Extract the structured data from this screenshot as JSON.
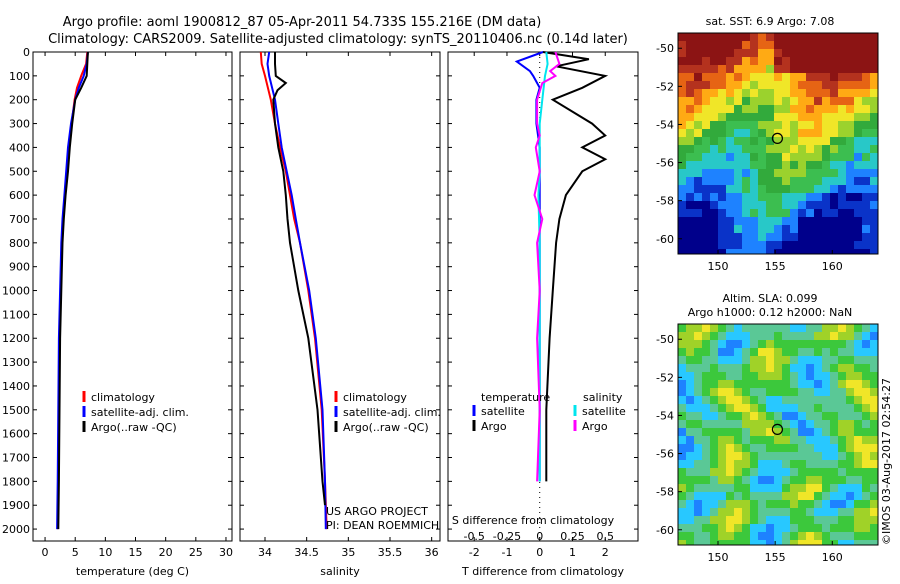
{
  "title_line1": "Argo profile: aoml 1900812_87 05-Apr-2011 54.733S 155.216E (DM data)",
  "title_line2": "Climatology: CARS2009. Satellite-adjusted climatology: synTS_20110406.nc (0.14d later)",
  "map_sst_title": "sat. SST: 6.9 Argo: 7.08",
  "map_sla_title1": "Altim. SLA: 0.099",
  "map_sla_title2": "Argo h1000: 0.12 h2000: NaN",
  "credit": "©IMOS 03-Aug-2017 02:54:27",
  "project_line1": "US ARGO PROJECT",
  "project_line2": "PI: DEAN ROEMMICH",
  "colors": {
    "climatology": "#ff0000",
    "satellite": "#0000ff",
    "argo": "#000000",
    "satellite_s": "#00e5ee",
    "argo_s": "#ff00ff"
  },
  "chart_data": [
    {
      "type": "line",
      "xlabel": "temperature (deg C)",
      "ylabel": "",
      "xlim": [
        -2,
        31
      ],
      "ylim": [
        2050,
        0
      ],
      "xticks": [
        "0",
        "5",
        "10",
        "15",
        "20",
        "25",
        "30"
      ],
      "yticks": [
        "0",
        "100",
        "200",
        "300",
        "400",
        "500",
        "600",
        "700",
        "800",
        "900",
        "1000",
        "1100",
        "1200",
        "1300",
        "1400",
        "1500",
        "1600",
        "1700",
        "1800",
        "1900",
        "2000"
      ],
      "legend": [
        "climatology",
        "satellite-adj. clim.",
        "Argo(..raw -QC)"
      ],
      "series": [
        {
          "name": "climatology",
          "depth": [
            0,
            50,
            100,
            150,
            200,
            300,
            400,
            500,
            600,
            700,
            800,
            1000,
            1200,
            1500,
            1800,
            2000
          ],
          "values": [
            7.0,
            6.8,
            6.0,
            5.3,
            4.9,
            4.4,
            4.0,
            3.6,
            3.3,
            3.0,
            2.8,
            2.6,
            2.4,
            2.3,
            2.2,
            2.1
          ]
        },
        {
          "name": "satellite-adj. clim.",
          "depth": [
            0,
            50,
            100,
            150,
            200,
            300,
            400,
            500,
            600,
            700,
            800,
            1000,
            1200,
            1500,
            1800,
            2000
          ],
          "values": [
            7.1,
            6.9,
            6.4,
            5.6,
            5.0,
            4.3,
            3.8,
            3.5,
            3.2,
            2.9,
            2.7,
            2.5,
            2.3,
            2.2,
            2.1,
            2.0
          ]
        },
        {
          "name": "Argo(..raw -QC)",
          "depth": [
            0,
            50,
            100,
            150,
            200,
            300,
            400,
            500,
            600,
            700,
            800,
            1000,
            1200,
            1500,
            1800,
            2000
          ],
          "values": [
            7.1,
            7.0,
            6.9,
            6.0,
            5.0,
            4.5,
            4.1,
            3.8,
            3.4,
            3.1,
            2.9,
            2.7,
            2.5,
            2.4,
            2.3,
            2.2
          ]
        }
      ]
    },
    {
      "type": "line",
      "xlabel": "salinity",
      "xlim": [
        33.7,
        36.1
      ],
      "ylim": [
        2050,
        0
      ],
      "xticks": [
        "34",
        "34.5",
        "35",
        "35.5",
        "36"
      ],
      "legend": [
        "climatology",
        "satellite-adj. clim.",
        "Argo(..raw -QC)"
      ],
      "series": [
        {
          "name": "climatology",
          "depth": [
            0,
            50,
            100,
            200,
            300,
            400,
            500,
            600,
            700,
            800,
            1000,
            1200,
            1500,
            1800,
            2000
          ],
          "values": [
            33.95,
            33.96,
            34.0,
            34.07,
            34.12,
            34.18,
            34.25,
            34.3,
            34.35,
            34.42,
            34.52,
            34.6,
            34.68,
            34.72,
            34.74
          ]
        },
        {
          "name": "satellite-adj. clim.",
          "depth": [
            0,
            50,
            100,
            200,
            300,
            400,
            500,
            600,
            700,
            800,
            1000,
            1200,
            1500,
            1800,
            2000
          ],
          "values": [
            34.05,
            34.03,
            34.05,
            34.12,
            34.16,
            34.2,
            34.26,
            34.32,
            34.37,
            34.42,
            34.53,
            34.61,
            34.69,
            34.72,
            34.73
          ]
        },
        {
          "name": "Argo(..raw -QC)",
          "depth": [
            0,
            50,
            100,
            130,
            160,
            200,
            300,
            400,
            500,
            600,
            700,
            800,
            1000,
            1200,
            1500,
            1800,
            1900
          ],
          "values": [
            34.12,
            34.12,
            34.13,
            34.25,
            34.15,
            34.1,
            34.12,
            34.16,
            34.22,
            34.25,
            34.27,
            34.3,
            34.4,
            34.52,
            34.63,
            34.69,
            34.72
          ]
        }
      ]
    },
    {
      "type": "line",
      "xlabel": "T difference from climatology",
      "xlabel_top": "S difference from climatology",
      "xlim": [
        -2.8,
        3.0
      ],
      "ylim": [
        2050,
        0
      ],
      "xticks": [
        "-2",
        "-1",
        "0",
        "1",
        "2"
      ],
      "xticks_s": [
        "-0.5",
        "-0.25",
        "0",
        "0.25",
        "0.5"
      ],
      "legend_headers": [
        "temperature",
        "salinity"
      ],
      "legend": [
        "satellite",
        "Argo",
        "satellite",
        "Argo"
      ],
      "series": [
        {
          "name": "satellite",
          "group": "temperature",
          "depth": [
            0,
            40,
            80,
            100,
            150,
            200,
            300,
            400,
            500,
            600,
            800,
            1000,
            1200,
            1500,
            1800
          ],
          "values": [
            0.1,
            -0.7,
            -0.3,
            -0.2,
            0.0,
            -0.1,
            -0.1,
            0.0,
            0.0,
            0.0,
            0.0,
            0.0,
            0.0,
            0.0,
            0.0
          ]
        },
        {
          "name": "Argo",
          "group": "temperature",
          "depth": [
            0,
            30,
            60,
            100,
            150,
            200,
            300,
            350,
            400,
            450,
            500,
            600,
            700,
            800,
            1000,
            1200,
            1500,
            1700,
            1800
          ],
          "values": [
            0.1,
            1.5,
            0.5,
            2.0,
            1.3,
            0.4,
            1.6,
            2.0,
            1.3,
            2.0,
            1.3,
            0.8,
            0.6,
            0.5,
            0.4,
            0.3,
            0.2,
            0.2,
            0.2
          ]
        },
        {
          "name": "satellite",
          "group": "salinity",
          "depth": [
            0,
            50,
            100,
            200,
            300,
            400,
            500,
            600,
            800,
            1000,
            1200,
            1500,
            1800
          ],
          "values": [
            0.05,
            0.06,
            0.04,
            0.02,
            0.0,
            0.0,
            0.0,
            -0.01,
            0.0,
            0.0,
            0.0,
            0.0,
            0.0
          ]
        },
        {
          "name": "Argo",
          "group": "salinity",
          "depth": [
            0,
            50,
            80,
            100,
            130,
            200,
            300,
            350,
            400,
            500,
            600,
            700,
            800,
            1000,
            1200,
            1500,
            1800
          ],
          "values": [
            0.12,
            0.15,
            0.08,
            0.12,
            0.02,
            -0.02,
            -0.02,
            0.0,
            -0.03,
            0.0,
            -0.04,
            0.02,
            -0.02,
            0.0,
            -0.02,
            0.0,
            -0.02
          ]
        }
      ]
    },
    {
      "type": "heatmap",
      "title": "sat. SST: 6.9 Argo: 7.08",
      "xticks": [
        "150",
        "155",
        "160"
      ],
      "yticks": [
        "-50",
        "-52",
        "-54",
        "-56",
        "-58",
        "-60"
      ],
      "xlim": [
        146.5,
        164
      ],
      "ylim": [
        -60.8,
        -49.2
      ],
      "marker": {
        "lon": 155.2,
        "lat": -54.73
      }
    },
    {
      "type": "heatmap",
      "title": "Altim. SLA: 0.099",
      "xticks": [
        "150",
        "155",
        "160"
      ],
      "yticks": [
        "-50",
        "-52",
        "-54",
        "-56",
        "-58",
        "-60"
      ],
      "xlim": [
        146.5,
        164
      ],
      "ylim": [
        -60.8,
        -49.2
      ],
      "marker": {
        "lon": 155.2,
        "lat": -54.73
      }
    }
  ]
}
